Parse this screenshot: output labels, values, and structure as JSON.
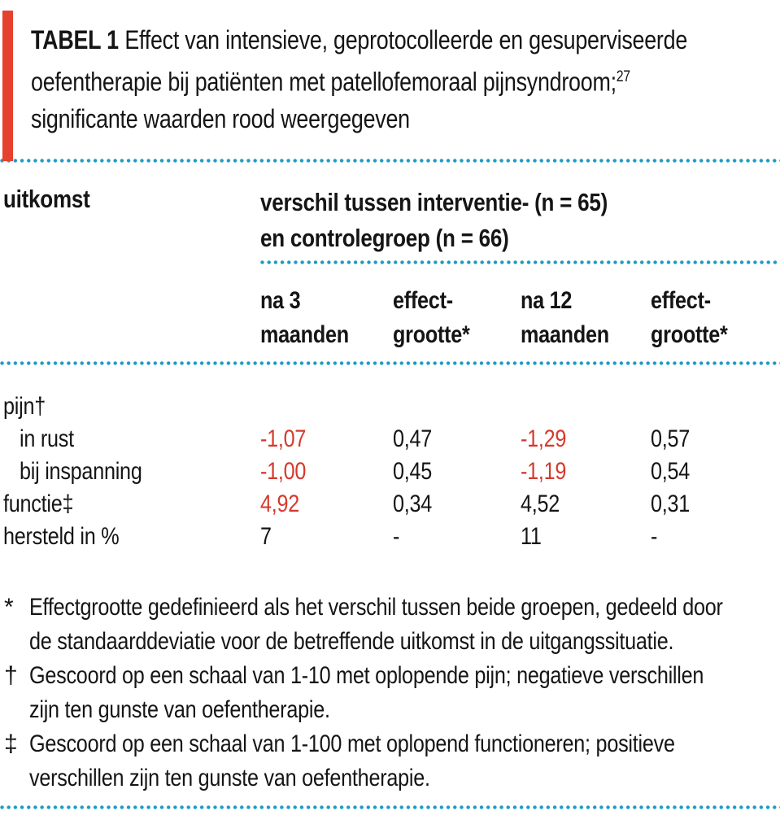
{
  "colors": {
    "accent_bar": "#e6402f",
    "significant_value": "#d43a2c",
    "dotted_rule": "#1d9bc4"
  },
  "title": {
    "label": "TABEL 1",
    "line1_rest": "Effect van intensieve, geprotocolleerde en gesuperviseerde",
    "line2": "oefentherapie bij patiënten met patellofemoraal pijnsyndroom;",
    "reference_superscript": "27",
    "line3": "significante waarden rood weergegeven"
  },
  "table": {
    "outcome_header": "uitkomst",
    "group_header": {
      "line1": "verschil tussen interventie- (n = 65)",
      "line2": "en controlegroep (n = 66)"
    },
    "subheaders": [
      {
        "line1": "na 3",
        "line2": "maanden"
      },
      {
        "line1": "effect-",
        "line2": "grootte*"
      },
      {
        "line1": "na 12",
        "line2": "maanden"
      },
      {
        "line1": "effect-",
        "line2": "grootte*"
      }
    ],
    "rows": [
      {
        "label": "pijn†",
        "indent": false,
        "values": []
      },
      {
        "label": "in rust",
        "indent": true,
        "values": [
          {
            "text": "-1,07",
            "significant": true
          },
          {
            "text": "0,47",
            "significant": false
          },
          {
            "text": "-1,29",
            "significant": true
          },
          {
            "text": "0,57",
            "significant": false
          }
        ]
      },
      {
        "label": "bij inspanning",
        "indent": true,
        "values": [
          {
            "text": "-1,00",
            "significant": true
          },
          {
            "text": "0,45",
            "significant": false
          },
          {
            "text": "-1,19",
            "significant": true
          },
          {
            "text": "0,54",
            "significant": false
          }
        ]
      },
      {
        "label": "functie‡",
        "indent": false,
        "values": [
          {
            "text": "4,92",
            "significant": true
          },
          {
            "text": "0,34",
            "significant": false
          },
          {
            "text": "4,52",
            "significant": false
          },
          {
            "text": "0,31",
            "significant": false
          }
        ]
      },
      {
        "label": "hersteld in %",
        "indent": false,
        "values": [
          {
            "text": "7",
            "significant": false
          },
          {
            "text": "-",
            "significant": false
          },
          {
            "text": "11",
            "significant": false
          },
          {
            "text": "-",
            "significant": false
          }
        ]
      }
    ]
  },
  "footnotes": [
    {
      "marker": "*",
      "lines": [
        "Effectgrootte gedefinieerd als het verschil tussen beide groepen, gedeeld door",
        "de standaarddeviatie voor de betreffende uitkomst in de uitgangssituatie."
      ]
    },
    {
      "marker": "†",
      "lines": [
        "Gescoord op een schaal van 1-10 met oplopende pijn; negatieve verschillen",
        "zijn ten gunste van oefentherapie."
      ]
    },
    {
      "marker": "‡",
      "lines": [
        "Gescoord op een schaal van 1-100 met oplopend functioneren; positieve",
        "verschillen zijn ten gunste van oefentherapie."
      ]
    }
  ]
}
